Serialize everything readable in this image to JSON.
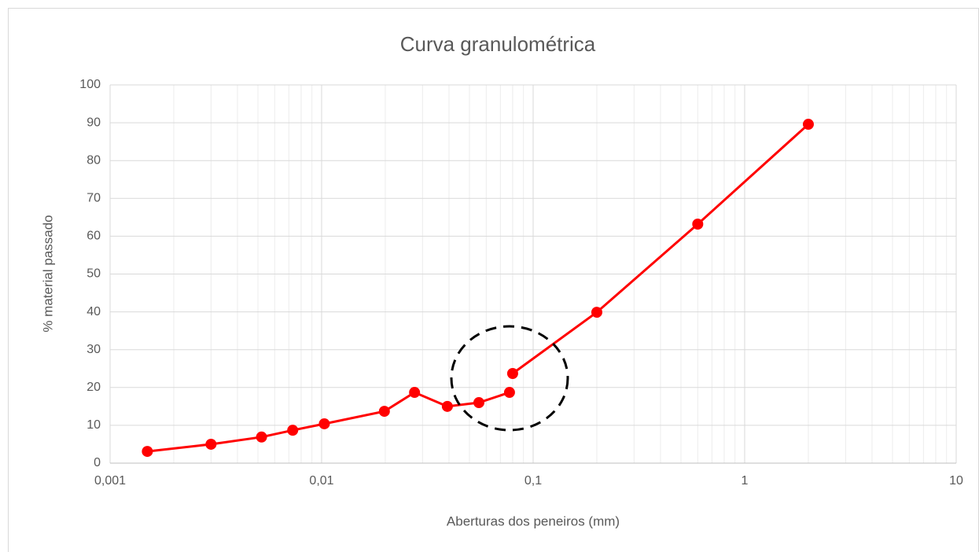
{
  "chart_data": {
    "type": "line",
    "title": "Curva granulométrica",
    "xlabel": "Aberturas dos peneiros (mm)",
    "ylabel": "% material passado",
    "xscale": "log",
    "xlim": [
      0.001,
      10
    ],
    "xticks": [
      {
        "value": 0.001,
        "label": "0,001"
      },
      {
        "value": 0.01,
        "label": "0,01"
      },
      {
        "value": 0.1,
        "label": "0,1"
      },
      1,
      10
    ],
    "ylim": [
      0,
      100
    ],
    "yticks": [
      0,
      10,
      20,
      30,
      40,
      50,
      60,
      70,
      80,
      90,
      100
    ],
    "grid": true,
    "minor_grid": true,
    "series": [
      {
        "color": "#ff0000",
        "x": [
          0.0015,
          0.003,
          0.0052,
          0.0073,
          0.0103,
          0.0198,
          0.0275,
          0.0393,
          0.0554,
          0.0773
        ],
        "values": [
          3.1,
          5.0,
          6.9,
          8.7,
          10.4,
          13.7,
          18.7,
          15.0,
          16.0,
          18.7
        ]
      },
      {
        "color": "#ff0000",
        "x": [
          0.08,
          0.2,
          0.6,
          2
        ],
        "values": [
          23.7,
          39.9,
          63.2,
          89.6
        ]
      }
    ]
  }
}
